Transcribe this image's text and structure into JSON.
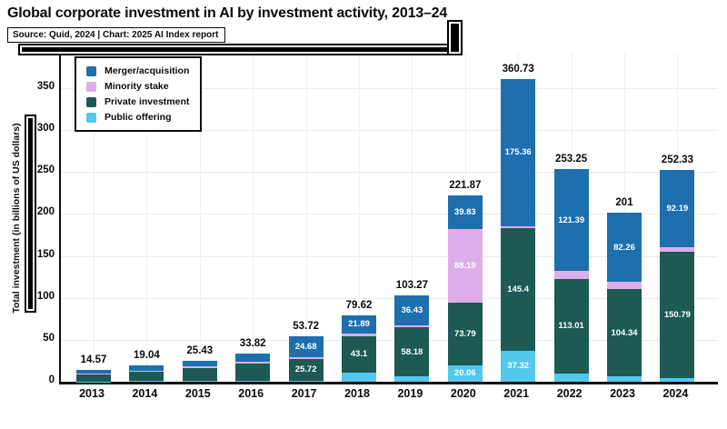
{
  "header": {
    "title": "Global corporate investment in AI by investment activity, 2013–24",
    "source": "Source: Quid, 2024 | Chart: 2025 AI Index report"
  },
  "chart_data": {
    "type": "bar",
    "stacked": true,
    "title": "Global corporate investment in AI by investment activity, 2013–24",
    "ylabel": "Total investment (in billions of US dollars)",
    "yticks": [
      0,
      50,
      100,
      150,
      200,
      250,
      300,
      350
    ],
    "ylim": [
      0,
      390
    ],
    "grid": true,
    "legend_position": "top-left",
    "unlabeled_segment_values_estimated": true,
    "categories": [
      "2013",
      "2014",
      "2015",
      "2016",
      "2017",
      "2018",
      "2019",
      "2020",
      "2021",
      "2022",
      "2023",
      "2024"
    ],
    "totals": [
      14.57,
      19.04,
      25.43,
      33.82,
      53.72,
      79.62,
      103.27,
      221.87,
      360.73,
      253.25,
      201,
      252.33
    ],
    "total_labels": [
      "14.57",
      "19.04",
      "25.43",
      "33.82",
      "53.72",
      "79.62",
      "103.27",
      "221.87",
      "360.73",
      "253.25",
      "201",
      "252.33"
    ],
    "stack_order_bottom_to_top": [
      "Public offering",
      "Private investment",
      "Minority stake",
      "Merger/acquisition"
    ],
    "series": [
      {
        "name": "Merger/acquisition",
        "color": "#1d6fae",
        "values": [
          5.0,
          5.5,
          7.5,
          10.0,
          24.68,
          21.89,
          36.43,
          39.83,
          175.36,
          121.39,
          82.26,
          92.19
        ],
        "value_labels": [
          "",
          "",
          "",
          "",
          "24.68",
          "21.89",
          "36.43",
          "39.83",
          "175.36",
          "121.39",
          "82.26",
          "92.19"
        ]
      },
      {
        "name": "Minority stake",
        "color": "#dfacea",
        "values": [
          1.3,
          1.0,
          1.7,
          1.7,
          2.3,
          3.7,
          2.3,
          88.19,
          2.65,
          9.4,
          8.4,
          5.4
        ],
        "value_labels": [
          "",
          "",
          "",
          "",
          "",
          "",
          "",
          "88.19",
          "",
          "",
          "",
          ""
        ]
      },
      {
        "name": "Private investment",
        "color": "#1c5a53",
        "values": [
          7.8,
          11.5,
          15.0,
          21.0,
          25.72,
          43.1,
          58.18,
          73.79,
          145.4,
          113.01,
          104.34,
          150.79
        ],
        "value_labels": [
          "",
          "",
          "",
          "",
          "25.72",
          "43.1",
          "58.18",
          "73.79",
          "145.4",
          "113.01",
          "104.34",
          "150.79"
        ]
      },
      {
        "name": "Public offering",
        "color": "#52c8ee",
        "values": [
          0.47,
          1.04,
          1.23,
          1.12,
          1.02,
          10.93,
          6.36,
          20.06,
          37.32,
          9.45,
          6.0,
          3.95
        ],
        "value_labels": [
          "",
          "",
          "",
          "",
          "",
          "",
          "",
          "20.06",
          "37.32",
          "",
          "",
          ""
        ]
      }
    ]
  }
}
